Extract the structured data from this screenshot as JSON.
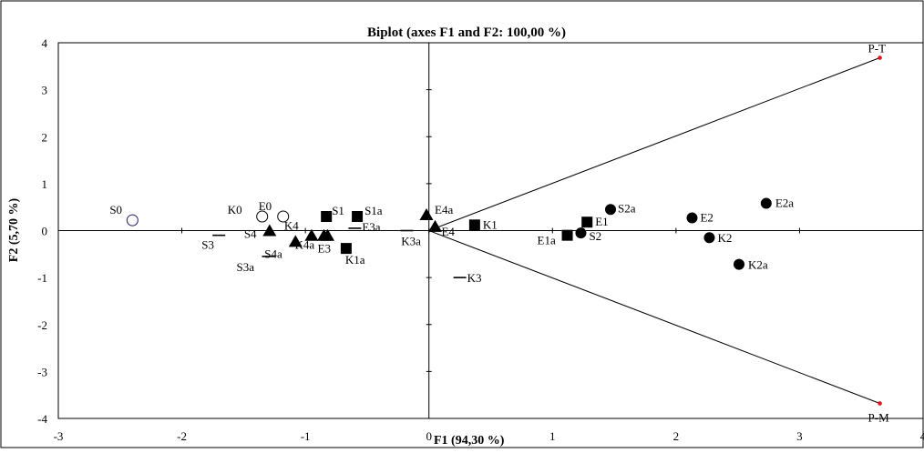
{
  "chart_data": {
    "type": "scatter",
    "title": "Biplot (axes F1 and F2: 100,00 %)",
    "xlabel": "F1 (94,30 %)",
    "ylabel": "F2 (5,70 %)",
    "xlim": [
      -3,
      4
    ],
    "ylim": [
      -4,
      4
    ],
    "x_ticks": [
      -3,
      -2,
      -1,
      0,
      1,
      2,
      3,
      4
    ],
    "y_ticks": [
      -4,
      -3,
      -2,
      -1,
      0,
      1,
      2,
      3,
      4
    ],
    "grid": false,
    "legend": "none",
    "marker_color": "#000000",
    "s0_color": "#1f1f6e",
    "vector_color": "#e0141e",
    "points": [
      {
        "label": "S0",
        "x": -2.4,
        "y": 0.22,
        "marker": "open-circle-blue"
      },
      {
        "label": "K0",
        "x": -1.35,
        "y": 0.3,
        "marker": "open-circle"
      },
      {
        "label": "E0",
        "x": -1.18,
        "y": 0.3,
        "marker": "open-circle"
      },
      {
        "label": "S1",
        "x": -0.83,
        "y": 0.3,
        "marker": "square"
      },
      {
        "label": "S1a",
        "x": -0.58,
        "y": 0.3,
        "marker": "square"
      },
      {
        "label": "K4",
        "x": -0.95,
        "y": -0.12,
        "marker": "triangle"
      },
      {
        "label": "E3a",
        "x": -0.6,
        "y": 0.05,
        "marker": "dash"
      },
      {
        "label": "E3",
        "x": -0.82,
        "y": -0.12,
        "marker": "triangle"
      },
      {
        "label": "K4a",
        "x": -0.85,
        "y": -0.12,
        "marker": "triangle"
      },
      {
        "label": "K1a",
        "x": -0.67,
        "y": -0.38,
        "marker": "square"
      },
      {
        "label": "S4",
        "x": -1.29,
        "y": -0.02,
        "marker": "triangle"
      },
      {
        "label": "S4a",
        "x": -1.08,
        "y": -0.25,
        "marker": "triangle"
      },
      {
        "label": "S3",
        "x": -1.7,
        "y": -0.1,
        "marker": "dash"
      },
      {
        "label": "S3a",
        "x": -1.3,
        "y": -0.55,
        "marker": "dash"
      },
      {
        "label": "K3a",
        "x": -0.18,
        "y": 0.0,
        "marker": "dash"
      },
      {
        "label": "E4a",
        "x": -0.02,
        "y": 0.32,
        "marker": "triangle"
      },
      {
        "label": "E4",
        "x": 0.05,
        "y": 0.07,
        "marker": "triangle"
      },
      {
        "label": "K1",
        "x": 0.37,
        "y": 0.12,
        "marker": "square"
      },
      {
        "label": "K3",
        "x": 0.25,
        "y": -1.0,
        "marker": "dash"
      },
      {
        "label": "E1a",
        "x": 1.12,
        "y": -0.1,
        "marker": "square"
      },
      {
        "label": "E1",
        "x": 1.28,
        "y": 0.18,
        "marker": "square"
      },
      {
        "label": "S2",
        "x": 1.23,
        "y": -0.05,
        "marker": "circle"
      },
      {
        "label": "S2a",
        "x": 1.47,
        "y": 0.45,
        "marker": "circle"
      },
      {
        "label": "E2",
        "x": 2.13,
        "y": 0.27,
        "marker": "circle"
      },
      {
        "label": "K2",
        "x": 2.27,
        "y": -0.15,
        "marker": "circle"
      },
      {
        "label": "E2a",
        "x": 2.73,
        "y": 0.58,
        "marker": "circle"
      },
      {
        "label": "K2a",
        "x": 2.51,
        "y": -0.72,
        "marker": "circle"
      }
    ],
    "vectors": [
      {
        "label": "P-T",
        "x": 3.65,
        "y": 3.68
      },
      {
        "label": "P-M",
        "x": 3.65,
        "y": -3.68
      }
    ]
  }
}
